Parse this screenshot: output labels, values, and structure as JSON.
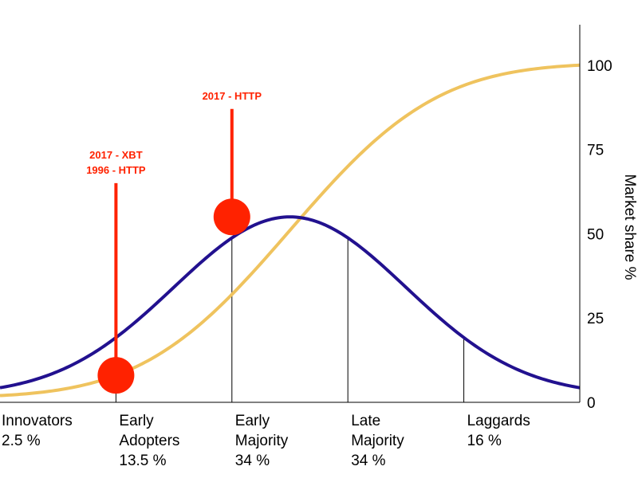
{
  "chart_data": {
    "type": "line",
    "title": "",
    "xlabel": "",
    "ylabel": "Market share %",
    "ylim": [
      0,
      112
    ],
    "y_axis_side": "right",
    "yticks": [
      "0",
      "25",
      "50",
      "75",
      "100"
    ],
    "grid": false,
    "x_domain": [
      -2.5,
      2.5
    ],
    "dividers": [
      -1.5,
      -0.5,
      0.5,
      1.5
    ],
    "segments": [
      {
        "lines": [
          "Innovators",
          "2.5 %"
        ]
      },
      {
        "lines": [
          "Early",
          "Adopters",
          "13.5 %"
        ]
      },
      {
        "lines": [
          "Early",
          "Majority",
          "34 %"
        ]
      },
      {
        "lines": [
          "Late",
          "Majority",
          "34 %"
        ]
      },
      {
        "lines": [
          "Laggards",
          "16 %"
        ]
      }
    ],
    "series": [
      {
        "kind": "bell",
        "color": "#22118f",
        "peak": 55,
        "baseline": 2
      },
      {
        "kind": "cumulative",
        "color": "#efc35e",
        "max": 100,
        "min": 2
      }
    ],
    "annotations": [
      {
        "x": -1.5,
        "y": 8,
        "top": 65,
        "lines": [
          "2017 - XBT",
          "1996 - HTTP"
        ],
        "color": "#ff2200"
      },
      {
        "x": -0.5,
        "y": 55,
        "top": 87,
        "lines": [
          "2017 - HTTP"
        ],
        "color": "#ff2200"
      }
    ]
  }
}
